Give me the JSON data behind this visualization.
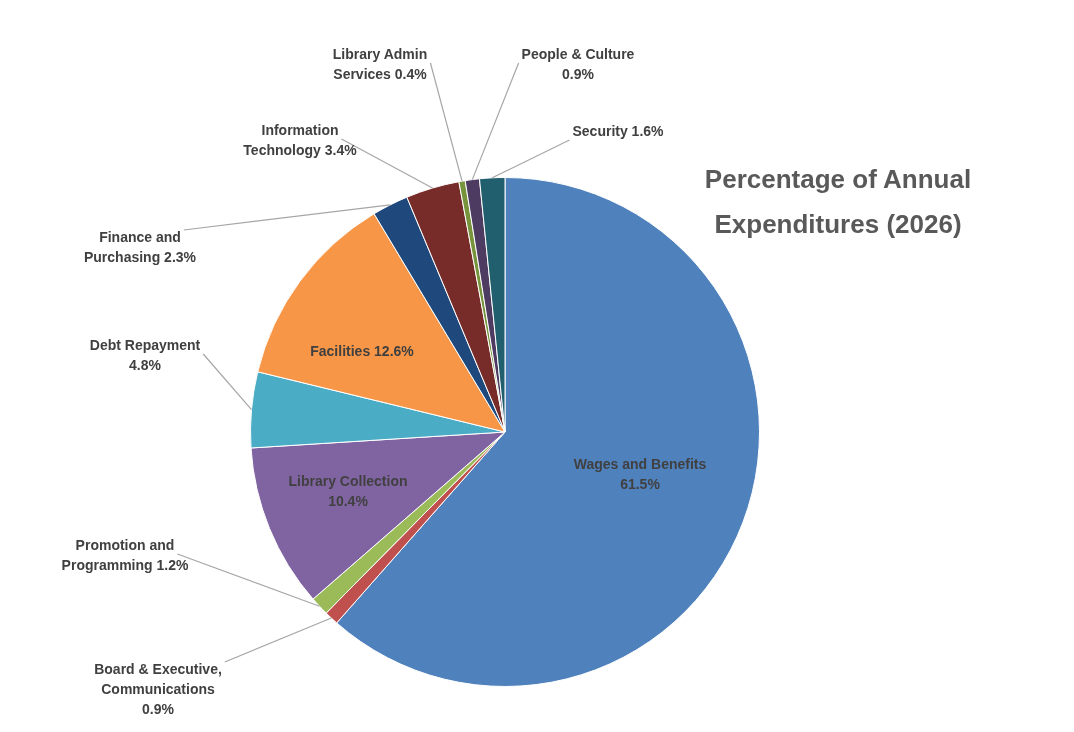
{
  "chart_data": {
    "type": "pie",
    "title": "Percentage of Annual Expenditures (2026)",
    "categories": [
      "Wages and Benefits",
      "Board & Executive, Communications",
      "Promotion and Programming",
      "Library Collection",
      "Debt Repayment",
      "Facilities",
      "Finance and Purchasing",
      "Information Technology",
      "Library Admin Services",
      "People & Culture",
      "Security"
    ],
    "values": [
      61.5,
      0.9,
      1.2,
      10.4,
      4.8,
      12.6,
      2.3,
      3.4,
      0.4,
      0.9,
      1.6
    ],
    "value_labels": [
      "61.5%",
      "0.9%",
      "1.2%",
      "10.4%",
      "4.8%",
      "12.6%",
      "2.3%",
      "3.4%",
      "0.4%",
      "0.9%",
      "1.6%"
    ],
    "colors": [
      "#4f81bd",
      "#c0504d",
      "#9bbb59",
      "#8064a2",
      "#4bacc6",
      "#f79646",
      "#1f497d",
      "#772c2a",
      "#77933c",
      "#4d3b62",
      "#215f6e"
    ],
    "legend": false
  }
}
